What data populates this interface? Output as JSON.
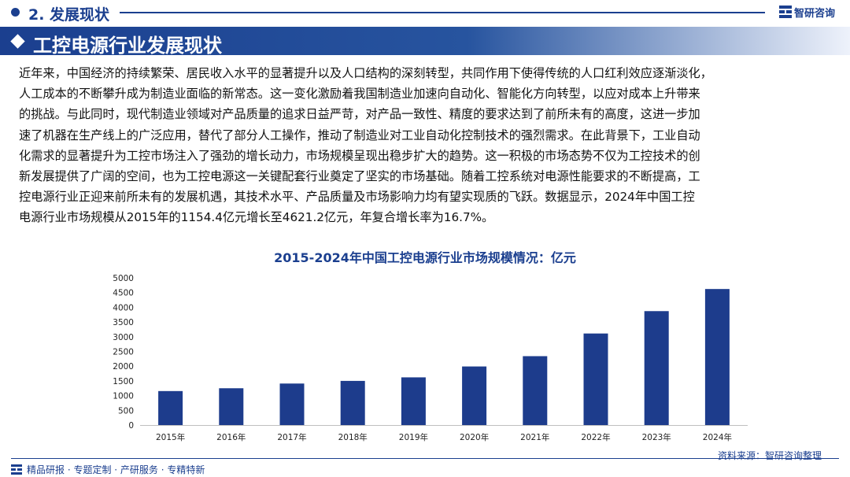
{
  "header": {
    "section_label": "2. 发展现状",
    "brand_name": "智研咨询"
  },
  "banner": {
    "title": "工控电源行业发展现状"
  },
  "body": {
    "lines": [
      "近年来，中国经济的持续繁荣、居民收入水平的显著提升以及人口结构的深刻转型，共同作用下使得传统的人口红利效应逐渐淡化，",
      "人工成本的不断攀升成为制造业面临的新常态。这一变化激励着我国制造业加速向自动化、智能化方向转型，以应对成本上升带来",
      "的挑战。与此同时，现代制造业领域对产品质量的追求日益严苛，对产品一致性、精度的要求达到了前所未有的高度，这进一步加",
      "速了机器在生产线上的广泛应用，替代了部分人工操作，推动了制造业对工业自动化控制技术的强烈需求。在此背景下，工业自动",
      "化需求的显著提升为工控市场注入了强劲的增长动力，市场规模呈现出稳步扩大的趋势。这一积极的市场态势不仅为工控技术的创",
      "新发展提供了广阔的空间，也为工控电源这一关键配套行业奠定了坚实的市场基础。随着工控系统对电源性能要求的不断提高，工",
      "控电源行业正迎来前所未有的发展机遇，其技术水平、产品质量及市场影响力均有望实现质的飞跃。数据显示，2024年中国工控",
      "电源行业市场规模从2015年的1154.4亿元增长至4621.2亿元，年复合增长率为16.7%。"
    ]
  },
  "chart_data": {
    "type": "bar",
    "title": "2015-2024年中国工控电源行业市场规模情况：亿元",
    "categories": [
      "2015年",
      "2016年",
      "2017年",
      "2018年",
      "2019年",
      "2020年",
      "2021年",
      "2022年",
      "2023年",
      "2024年"
    ],
    "values": [
      1154.4,
      1250,
      1410,
      1500,
      1620,
      1990,
      2340,
      3110,
      3870,
      4621.2
    ],
    "ylim": [
      0,
      5000
    ],
    "yticks": [
      0,
      500,
      1000,
      1500,
      2000,
      2500,
      3000,
      3500,
      4000,
      4500,
      5000
    ],
    "xlabel": "",
    "ylabel": "",
    "grid": false,
    "bar_color": "#1d3c8c"
  },
  "footer": {
    "source": "资料来源：智研咨询整理",
    "tagline": "精品研报 · 专题定制 · 产研服务 · 专精特新"
  },
  "colors": {
    "primary": "#1b3f8f",
    "bar": "#1d3c8c"
  }
}
